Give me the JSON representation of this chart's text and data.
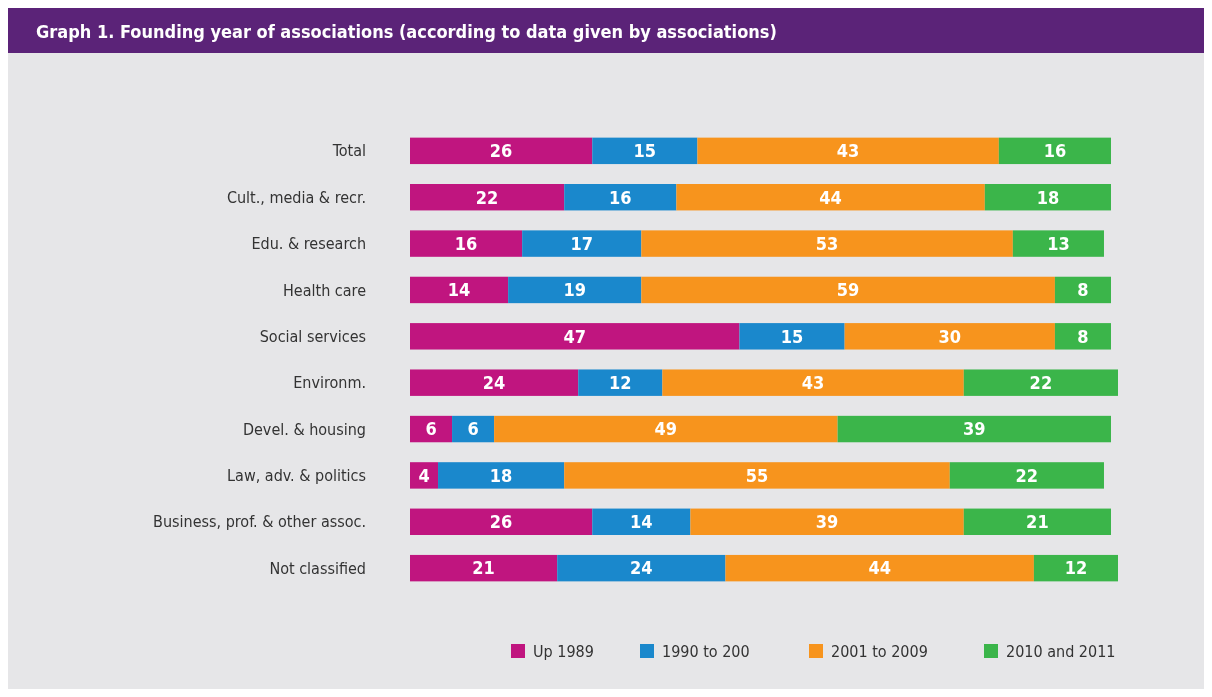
{
  "chart_data": {
    "type": "bar",
    "orientation": "horizontal",
    "stacked": true,
    "title": "Graph 1. Founding year of associations (according to data given by associations)",
    "categories": [
      "Total",
      "Cult., media & recr.",
      "Edu. & research",
      "Health care",
      "Social services",
      "Environm.",
      "Devel. & housing",
      "Law, adv. & politics",
      "Business, prof. & other assoc.",
      "Not classified"
    ],
    "series": [
      {
        "name": "Up 1989",
        "color": "#c0157f",
        "values": [
          26,
          22,
          16,
          14,
          47,
          24,
          6,
          4,
          26,
          21
        ]
      },
      {
        "name": "1990 to 200",
        "color": "#1a88cc",
        "values": [
          15,
          16,
          17,
          19,
          15,
          12,
          6,
          18,
          14,
          24
        ]
      },
      {
        "name": "2001 to 2009",
        "color": "#f7941d",
        "values": [
          43,
          44,
          53,
          59,
          30,
          43,
          49,
          55,
          39,
          44
        ]
      },
      {
        "name": "2010 and 2011",
        "color": "#3bb54a",
        "values": [
          16,
          18,
          13,
          8,
          8,
          22,
          39,
          22,
          21,
          12
        ]
      }
    ],
    "xlim": [
      0,
      101
    ],
    "data_labels": true,
    "legend": "bottom",
    "tick_labels": "y"
  }
}
